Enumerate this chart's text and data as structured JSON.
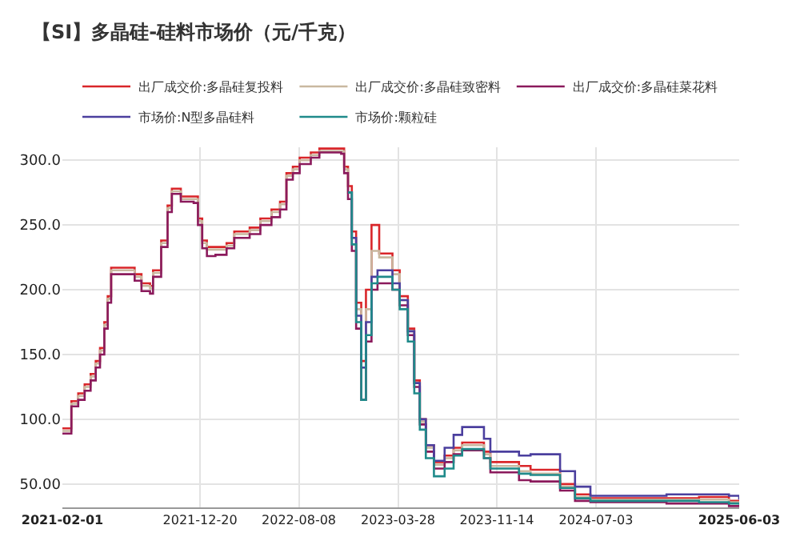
{
  "chart_data": {
    "type": "step",
    "title": "【SI】多晶硅-硅料市场价（元/千克）",
    "x": [
      "2021-02-01",
      "2021-02-20",
      "2021-02-22",
      "2021-03-10",
      "2021-03-25",
      "2021-04-08",
      "2021-04-20",
      "2021-04-30",
      "2021-05-10",
      "2021-05-18",
      "2021-05-26",
      "2021-07-10",
      "2021-07-20",
      "2021-08-05",
      "2021-08-25",
      "2021-09-01",
      "2021-09-20",
      "2021-10-05",
      "2021-10-15",
      "2021-10-30",
      "2021-11-05",
      "2021-12-05",
      "2021-12-15",
      "2021-12-25",
      "2022-01-05",
      "2022-01-25",
      "2022-02-20",
      "2022-03-10",
      "2022-04-15",
      "2022-05-10",
      "2022-06-05",
      "2022-06-25",
      "2022-07-10",
      "2022-07-25",
      "2022-08-10",
      "2022-09-05",
      "2022-09-25",
      "2022-11-15",
      "2022-11-22",
      "2022-12-01",
      "2022-12-10",
      "2022-12-20",
      "2023-01-01",
      "2023-01-12",
      "2023-01-25",
      "2023-02-08",
      "2023-02-12",
      "2023-03-15",
      "2023-04-01",
      "2023-04-20",
      "2023-05-05",
      "2023-05-18",
      "2023-06-01",
      "2023-06-20",
      "2023-07-15",
      "2023-08-05",
      "2023-08-25",
      "2023-09-25",
      "2023-10-15",
      "2023-10-30",
      "2024-01-05",
      "2024-02-01",
      "2024-03-20",
      "2024-04-10",
      "2024-05-15",
      "2024-06-20",
      "2024-12-15",
      "2025-03-01",
      "2025-05-10",
      "2025-06-03"
    ],
    "series": [
      {
        "name": "出厂成交价:多晶硅复投料",
        "color": "#d9262a",
        "values": [
          93,
          93,
          114,
          120,
          127,
          135,
          145,
          155,
          175,
          195,
          217,
          217,
          212,
          205,
          203,
          215,
          238,
          265,
          278,
          278,
          272,
          272,
          255,
          238,
          233,
          233,
          236,
          245,
          248,
          255,
          262,
          268,
          290,
          295,
          302,
          306,
          309,
          309,
          295,
          280,
          245,
          190,
          145,
          200,
          250,
          250,
          228,
          215,
          195,
          170,
          130,
          100,
          80,
          67,
          72,
          78,
          82,
          82,
          75,
          67,
          64,
          61,
          61,
          50,
          42,
          39,
          39,
          40,
          37,
          36
        ]
      },
      {
        "name": "出厂成交价:多晶硅致密料",
        "color": "#c9b8a0",
        "values": [
          91,
          91,
          112,
          118,
          125,
          133,
          143,
          153,
          173,
          193,
          215,
          215,
          210,
          203,
          201,
          213,
          236,
          263,
          276,
          276,
          270,
          270,
          253,
          236,
          231,
          231,
          234,
          243,
          246,
          253,
          260,
          266,
          288,
          293,
          300,
          304,
          307,
          307,
          293,
          275,
          240,
          185,
          140,
          185,
          230,
          230,
          225,
          212,
          192,
          168,
          128,
          98,
          78,
          65,
          70,
          76,
          80,
          80,
          73,
          64,
          60,
          58,
          58,
          48,
          40,
          38,
          38,
          38,
          36,
          35
        ]
      },
      {
        "name": "出厂成交价:多晶硅菜花料",
        "color": "#8b1a5c",
        "values": [
          89,
          89,
          110,
          115,
          122,
          130,
          140,
          150,
          170,
          190,
          212,
          212,
          207,
          199,
          197,
          210,
          233,
          260,
          274,
          274,
          268,
          267,
          250,
          232,
          226,
          227,
          232,
          240,
          243,
          250,
          256,
          262,
          285,
          290,
          297,
          302,
          306,
          305,
          290,
          270,
          230,
          170,
          115,
          160,
          200,
          205,
          205,
          200,
          188,
          165,
          125,
          96,
          75,
          62,
          67,
          73,
          76,
          76,
          70,
          59,
          53,
          52,
          52,
          45,
          37,
          36,
          35,
          35,
          33,
          33
        ]
      },
      {
        "name": "市场价:N型多晶硅料",
        "color": "#4b3f9e",
        "values": [
          null,
          null,
          null,
          null,
          null,
          null,
          null,
          null,
          null,
          null,
          null,
          null,
          null,
          null,
          null,
          null,
          null,
          null,
          null,
          null,
          null,
          null,
          null,
          null,
          null,
          null,
          null,
          null,
          null,
          null,
          null,
          null,
          null,
          null,
          null,
          null,
          null,
          null,
          null,
          275,
          240,
          180,
          140,
          175,
          210,
          215,
          215,
          205,
          192,
          168,
          128,
          100,
          80,
          68,
          78,
          88,
          94,
          94,
          85,
          75,
          72,
          73,
          73,
          60,
          48,
          41,
          42,
          42,
          41,
          38
        ]
      },
      {
        "name": "市场价:颗粒硅",
        "color": "#1f8a8a",
        "values": [
          null,
          null,
          null,
          null,
          null,
          null,
          null,
          null,
          null,
          null,
          null,
          null,
          null,
          null,
          null,
          null,
          null,
          null,
          null,
          null,
          null,
          null,
          null,
          null,
          null,
          null,
          null,
          null,
          null,
          null,
          null,
          null,
          null,
          null,
          null,
          null,
          null,
          null,
          null,
          275,
          235,
          175,
          115,
          165,
          205,
          210,
          210,
          200,
          185,
          160,
          120,
          92,
          70,
          56,
          62,
          72,
          77,
          77,
          70,
          62,
          58,
          57,
          57,
          47,
          39,
          37,
          37,
          36,
          35,
          34
        ]
      }
    ],
    "xlim": [
      "2021-02-01",
      "2025-06-03"
    ],
    "xticks": [
      "2021-02-01",
      "2021-12-20",
      "2022-08-08",
      "2023-03-28",
      "2023-11-14",
      "2024-07-03",
      "2025-06-03"
    ],
    "ylim": [
      32,
      310
    ],
    "yticks": [
      {
        "value": 50,
        "label": "50.00"
      },
      {
        "value": 100,
        "label": "100.0"
      },
      {
        "value": 150,
        "label": "150.0"
      },
      {
        "value": 200,
        "label": "200.0"
      },
      {
        "value": 250,
        "label": "250.0"
      },
      {
        "value": 300,
        "label": "300.0"
      }
    ],
    "grid": true,
    "legend": "top",
    "marker": "none",
    "line_style": "solid"
  }
}
